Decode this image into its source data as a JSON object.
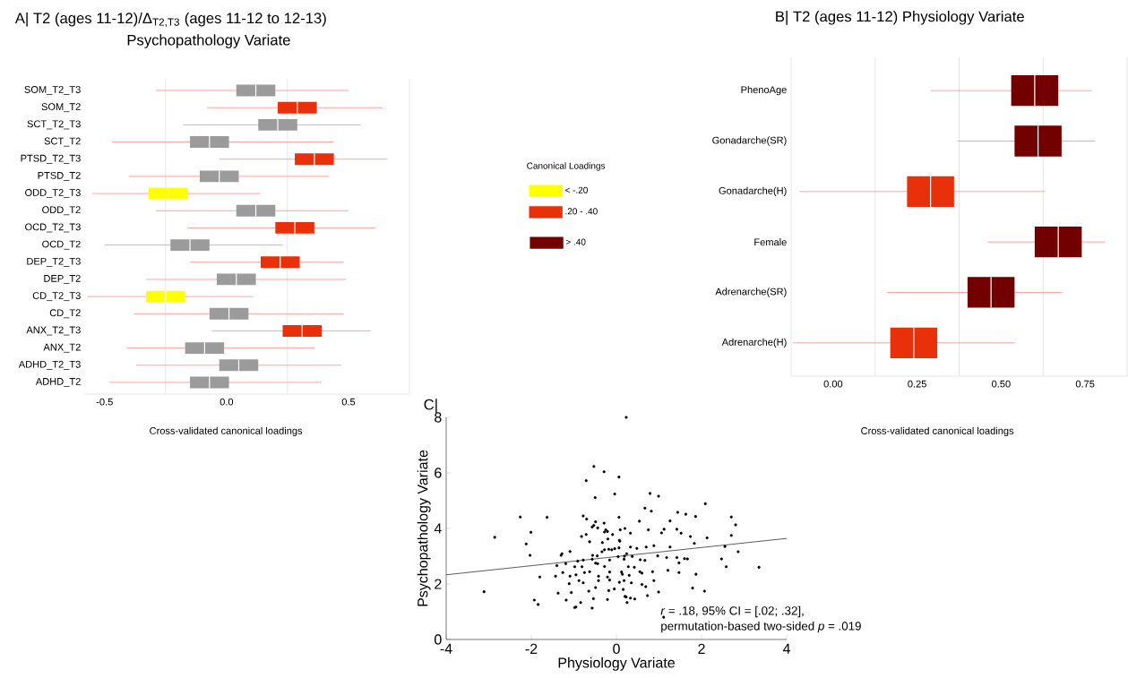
{
  "chart_data": [
    {
      "type": "box",
      "orientation": "horizontal",
      "title": "A| T2 (ages 11-12)/Δ$_{T2,T3}$ (ages 11-12 to 12-13)",
      "subtitle": "Psychopathology Variate",
      "xlabel": "Cross-validated canonical loadings",
      "categories": [
        "SOM_T2_T3",
        "SOM_T2",
        "SCT_T2_T3",
        "SCT_T2",
        "PTSD_T2_T3",
        "PTSD_T2",
        "ODD_T2_T3",
        "ODD_T2",
        "OCD_T2_T3",
        "OCD_T2",
        "DEP_T2_T3",
        "DEP_T2",
        "CD_T2_T3",
        "CD_T2",
        "ANX_T2_T3",
        "ANX_T2",
        "ADHD_T2_T3",
        "ADHD_T2"
      ],
      "xlim": [
        -0.58,
        0.75
      ],
      "xticks": [
        -0.5,
        {
          "value": -0.25,
          "label": null
        },
        {
          "value": 0,
          "label": "0.0"
        },
        {
          "value": 0.25,
          "label": null
        },
        0.5,
        {
          "value": 0.75,
          "label": null
        }
      ],
      "grid": "x",
      "legend": "right",
      "legend_title": "Canonical Loadings",
      "series": [
        {
          "name": "< -.20",
          "color": "#ffff00",
          "boxes": [
            null,
            null,
            null,
            null,
            null,
            null,
            {
              "low": -0.55,
              "q1": -0.32,
              "median": -0.24,
              "q3": -0.16,
              "high": 0.14
            },
            null,
            null,
            null,
            null,
            null,
            {
              "low": -0.57,
              "q1": -0.33,
              "median": -0.25,
              "q3": -0.17,
              "high": 0.11
            },
            null,
            null,
            null,
            null,
            null
          ]
        },
        {
          "name": ".20 - .40",
          "color": "#e8300a",
          "boxes": [
            null,
            {
              "low": -0.08,
              "q1": 0.21,
              "median": 0.29,
              "q3": 0.37,
              "high": 0.64
            },
            null,
            null,
            {
              "low": -0.03,
              "q1": 0.28,
              "median": 0.36,
              "q3": 0.44,
              "high": 0.66
            },
            null,
            null,
            null,
            {
              "low": -0.16,
              "q1": 0.2,
              "median": 0.28,
              "q3": 0.36,
              "high": 0.61
            },
            null,
            {
              "low": -0.15,
              "q1": 0.14,
              "median": 0.22,
              "q3": 0.3,
              "high": 0.48
            },
            null,
            null,
            null,
            {
              "low": -0.06,
              "q1": 0.23,
              "median": 0.31,
              "q3": 0.39,
              "high": 0.59
            },
            null,
            null,
            null
          ]
        },
        {
          "color": "#9b9b9b",
          "boxes": [
            {
              "low": -0.29,
              "q1": 0.04,
              "median": 0.12,
              "q3": 0.2,
              "high": 0.5
            },
            null,
            {
              "low": -0.18,
              "q1": 0.13,
              "median": 0.21,
              "q3": 0.29,
              "high": 0.55
            },
            {
              "low": -0.47,
              "q1": -0.15,
              "median": -0.07,
              "q3": 0.01,
              "high": 0.44
            },
            null,
            {
              "low": -0.4,
              "q1": -0.11,
              "median": -0.03,
              "q3": 0.05,
              "high": 0.42
            },
            null,
            {
              "low": -0.29,
              "q1": 0.04,
              "median": 0.12,
              "q3": 0.2,
              "high": 0.5
            },
            null,
            {
              "low": -0.5,
              "q1": -0.23,
              "median": -0.15,
              "q3": -0.07,
              "high": 0.23
            },
            null,
            {
              "low": -0.33,
              "q1": -0.04,
              "median": 0.04,
              "q3": 0.12,
              "high": 0.49
            },
            null,
            {
              "low": -0.38,
              "q1": -0.07,
              "median": 0.01,
              "q3": 0.09,
              "high": 0.48
            },
            null,
            {
              "low": -0.41,
              "q1": -0.17,
              "median": -0.09,
              "q3": -0.01,
              "high": 0.36
            },
            {
              "low": -0.37,
              "q1": -0.03,
              "median": 0.05,
              "q3": 0.13,
              "high": 0.47
            },
            {
              "low": -0.48,
              "q1": -0.15,
              "median": -0.07,
              "q3": 0.01,
              "high": 0.39
            }
          ]
        }
      ]
    },
    {
      "type": "box",
      "orientation": "horizontal",
      "title": "B| T2 (ages 11-12) Physiology Variate",
      "xlabel": "Cross-validated canonical loadings",
      "categories": [
        "PhenoAge",
        "Gonadarche(SR)",
        "Gonadarche(H)",
        "Female",
        "Adrenarche(SR)",
        "Adrenarche(H)"
      ],
      "xlim": [
        -0.125,
        0.875
      ],
      "xticks": [
        {
          "value": -0.125,
          "label": null
        },
        {
          "value": 0,
          "label": "0.00"
        },
        {
          "value": 0.125,
          "label": null
        },
        0.25,
        {
          "value": 0.375,
          "label": null
        },
        {
          "value": 0.5,
          "label": "0.50"
        },
        {
          "value": 0.625,
          "label": null
        },
        0.75,
        {
          "value": 0.875,
          "label": null
        }
      ],
      "grid": "x",
      "legend": "left",
      "series": [
        {
          "color": "#e8300a",
          "boxes": [
            null,
            null,
            {
              "low": -0.1,
              "q1": 0.22,
              "median": 0.29,
              "q3": 0.36,
              "high": 0.63
            },
            null,
            null,
            {
              "low": -0.12,
              "q1": 0.17,
              "median": 0.24,
              "q3": 0.31,
              "high": 0.54
            }
          ]
        },
        {
          "name": "> .40",
          "color": "#730000",
          "boxes": [
            {
              "low": 0.29,
              "q1": 0.53,
              "median": 0.6,
              "q3": 0.67,
              "high": 0.77
            },
            {
              "low": 0.37,
              "q1": 0.54,
              "median": 0.61,
              "q3": 0.68,
              "high": 0.78
            },
            null,
            {
              "low": 0.46,
              "q1": 0.6,
              "median": 0.67,
              "q3": 0.74,
              "high": 0.81
            },
            {
              "low": 0.16,
              "q1": 0.4,
              "median": 0.47,
              "q3": 0.54,
              "high": 0.68
            },
            null
          ]
        }
      ]
    },
    {
      "type": "scatter",
      "title": "C|",
      "xlabel": "Physiology Variate",
      "ylabel": "Psychopathology Variate",
      "xlim": [
        -4,
        4
      ],
      "xticks": [
        -4,
        -2,
        0,
        2,
        4
      ],
      "ylim": [
        0,
        8
      ],
      "yticks": [
        0,
        2,
        4,
        6,
        8
      ],
      "annotations": [
        "*r* = .18, 95% CI = [.02; .32],",
        "permutation-based two-sided *p* = .019"
      ],
      "series": [
        {
          "color": "#000000",
          "marker": "circle",
          "x": [
            0.23,
            -0.53,
            -0.29,
            0.06,
            -0.71,
            -0.04,
            -0.5,
            0.79,
            0.99,
            0.67,
            0.82,
            2.09,
            -2.26,
            -1.63,
            -0.78,
            -0.7,
            1.44,
            1.63,
            1.86,
            2.7,
            2.8,
            0.06,
            -0.49,
            -0.29,
            0.54,
            1.26,
            -2.86,
            -2.01,
            -0.57,
            -0.53,
            -0.44,
            -0.25,
            -0.21,
            -0.28,
            -0.09,
            0.09,
            0.2,
            0.33,
            0.75,
            1.06,
            1.12,
            1.42,
            1.52,
            1.74,
            2.13,
            2.7,
            -0.82,
            -0.71,
            -2.12,
            1.83,
            2.55,
            2.86,
            1.26,
            0.88,
            0.7,
            0.33,
            0.48,
            0.07,
            0.08,
            0.06,
            -0.04,
            -0.11,
            -0.18,
            -0.28,
            -0.34,
            -0.33,
            -0.2,
            -0.63,
            -1.09,
            -1.3,
            -1.28,
            -2.03,
            -0.56,
            -0.45,
            0.04,
            0.24,
            0.19,
            0.37,
            0.97,
            1.18,
            1.42,
            1.6,
            1.67,
            2.47,
            -1.19,
            -1.4,
            -0.91,
            -0.78,
            -0.57,
            -0.49,
            -0.44,
            -0.16,
            0.18,
            0.56,
            0.67,
            0.28,
            0.42,
            1.47,
            2.58,
            3.35,
            -0.98,
            -0.81,
            -0.28,
            -0.16,
            -1.26,
            -0.75,
            -0.63,
            0.12,
            0.55,
            0.6,
            0.85,
            1.47,
            1.87,
            1.21,
            -1.8,
            -1.43,
            -1.09,
            -0.95,
            -0.42,
            -0.21,
            0.14,
            0.3,
            -0.16,
            -0.42,
            -0.88,
            -1.11,
            -0.78,
            0.07,
            0.18,
            0.35,
            0.6,
            0.69,
            0.88,
            -0.49,
            -0.65,
            -0.18,
            -0.05,
            0.16,
            -1.37,
            -1.06,
            -3.11,
            0.99,
            1.79,
            2.07,
            -1.93,
            -1.84,
            -1.18,
            -0.84,
            -0.54,
            -0.21,
            0.2,
            0.23,
            0.33,
            0.43,
            0.73,
            0.25,
            -0.98,
            -0.95,
            -0.57,
            1.11
          ],
          "values": [
            8.0,
            6.23,
            6.04,
            5.85,
            5.72,
            5.24,
            5.11,
            5.26,
            5.16,
            4.73,
            4.62,
            4.89,
            4.41,
            4.4,
            4.45,
            4.34,
            4.58,
            4.51,
            4.43,
            4.41,
            4.13,
            4.4,
            4.24,
            4.19,
            4.26,
            4.27,
            3.68,
            3.86,
            4.05,
            4.11,
            4.02,
            3.95,
            3.89,
            3.87,
            3.78,
            3.95,
            4.0,
            3.83,
            3.95,
            3.84,
            3.97,
            3.97,
            3.83,
            3.71,
            3.66,
            3.75,
            3.71,
            3.78,
            3.44,
            3.46,
            3.35,
            3.16,
            3.33,
            3.38,
            3.33,
            3.33,
            3.28,
            3.57,
            3.54,
            3.3,
            3.27,
            3.23,
            3.25,
            3.23,
            3.16,
            3.49,
            3.62,
            3.52,
            3.17,
            3.03,
            3.09,
            3.03,
            3.03,
            3.01,
            2.98,
            3.09,
            3.0,
            2.99,
            3.01,
            2.95,
            2.95,
            2.91,
            2.9,
            2.9,
            2.73,
            2.66,
            2.82,
            2.86,
            2.89,
            2.75,
            2.73,
            2.86,
            2.89,
            2.87,
            2.85,
            2.62,
            2.6,
            2.76,
            2.62,
            2.6,
            2.62,
            2.62,
            2.63,
            2.43,
            2.41,
            2.41,
            2.44,
            2.43,
            2.44,
            2.39,
            2.44,
            2.41,
            2.35,
            2.49,
            2.25,
            2.28,
            2.28,
            2.33,
            2.28,
            2.25,
            2.35,
            2.31,
            2.14,
            2.12,
            2.12,
            2.01,
            2.04,
            2.06,
            2.12,
            2.04,
            1.98,
            1.9,
            2.12,
            1.87,
            1.74,
            1.76,
            1.82,
            1.8,
            1.67,
            1.69,
            1.72,
            1.71,
            1.85,
            1.74,
            1.42,
            1.26,
            1.42,
            1.33,
            1.47,
            1.44,
            1.55,
            1.53,
            1.49,
            1.46,
            1.58,
            1.33,
            1.15,
            1.17,
            1.13,
            0.8
          ]
        },
        {
          "type": "line",
          "color": "#333333",
          "x": [
            -4,
            4
          ],
          "values": [
            2.33,
            3.64
          ]
        }
      ]
    }
  ]
}
